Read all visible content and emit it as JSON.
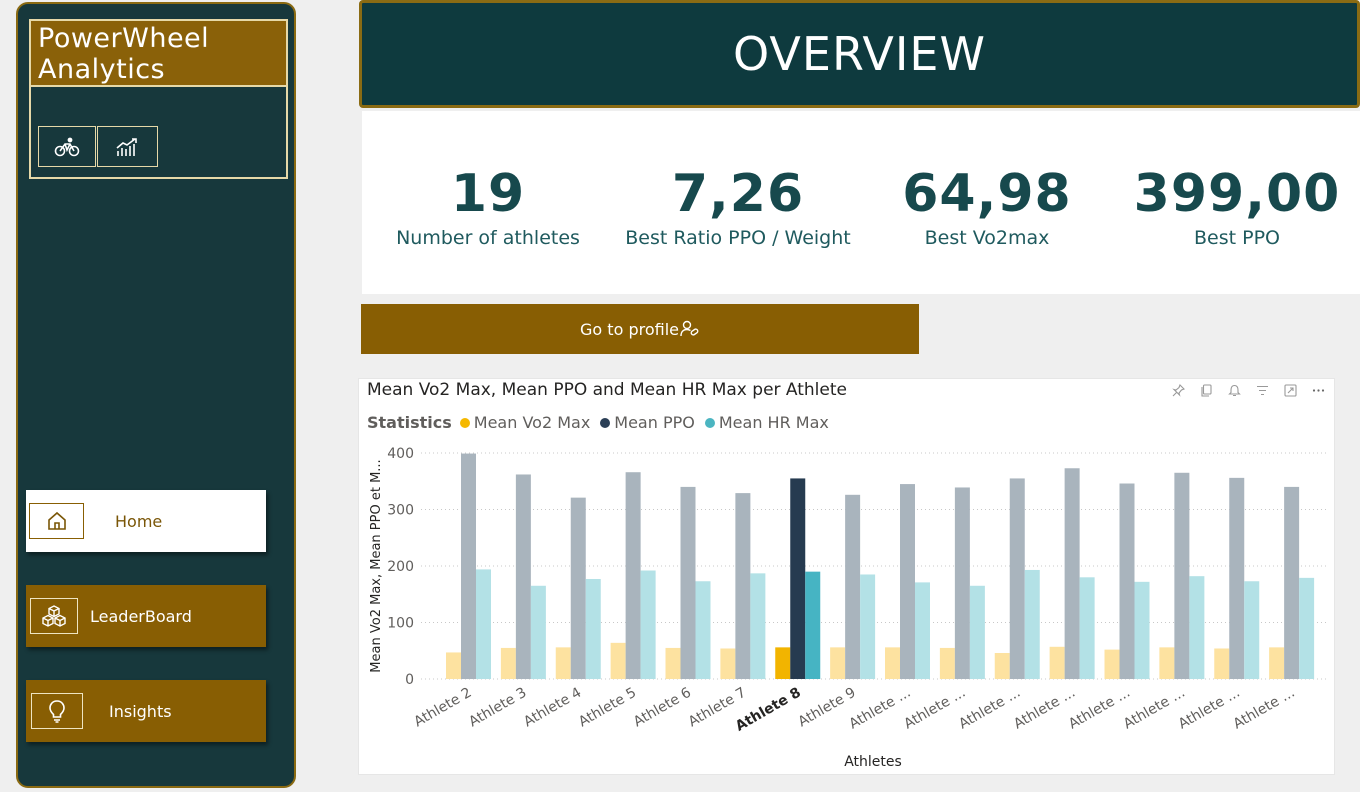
{
  "sidebar": {
    "brand_title": "PowerWheel Analytics",
    "brand_buttons": [
      {
        "icon": "bike-icon"
      },
      {
        "icon": "trend-chart-icon"
      }
    ],
    "nav": [
      {
        "label": "Home",
        "icon": "home-icon",
        "active": true
      },
      {
        "label": "LeaderBoard",
        "icon": "cubes-icon",
        "active": false
      },
      {
        "label": "Insights",
        "icon": "lightbulb-icon",
        "active": false
      }
    ]
  },
  "header": {
    "title": "OVERVIEW"
  },
  "kpis": [
    {
      "value": "19",
      "label": "Number of athletes"
    },
    {
      "value": "7,26",
      "label": "Best Ratio PPO / Weight"
    },
    {
      "value": "64,98",
      "label": "Best  Vo2max"
    },
    {
      "value": "399,00",
      "label": "Best PPO"
    }
  ],
  "profile_button": {
    "label": "Go to profile"
  },
  "chart": {
    "title": "Mean Vo2 Max, Mean PPO and Mean HR Max per Athlete",
    "legend_title": "Statistics",
    "tools": [
      "pin-icon",
      "copy-icon",
      "bell-icon",
      "filter-icon",
      "focus-mode-icon",
      "more-options-icon"
    ]
  },
  "chart_data": {
    "type": "bar",
    "categories": [
      "Athlete 2",
      "Athlete 3",
      "Athlete 4",
      "Athlete 5",
      "Athlete 6",
      "Athlete 7",
      "Athlete 8",
      "Athlete 9",
      "Athlete ...",
      "Athlete ...",
      "Athlete ...",
      "Athlete ...",
      "Athlete ...",
      "Athlete ...",
      "Athlete ...",
      "Athlete ..."
    ],
    "highlighted_category": "Athlete 8",
    "series": [
      {
        "name": "Mean Vo2 Max",
        "color": "#f5b800",
        "dim_color": "#fde2a0",
        "highlight_color": "#f2b400",
        "values": [
          47,
          55,
          56,
          64,
          55,
          54,
          56,
          56,
          56,
          55,
          46,
          57,
          52,
          56,
          54,
          56
        ]
      },
      {
        "name": "Mean PPO",
        "color": "#2b3f56",
        "dim_color": "#a9b4bd",
        "highlight_color": "#263b50",
        "values": [
          399,
          362,
          321,
          366,
          340,
          329,
          355,
          326,
          345,
          339,
          355,
          373,
          346,
          365,
          356,
          340
        ]
      },
      {
        "name": "Mean HR Max",
        "color": "#4bb5c1",
        "dim_color": "#b3e1e6",
        "highlight_color": "#46b4c3",
        "values": [
          194,
          165,
          177,
          192,
          173,
          187,
          190,
          185,
          171,
          165,
          193,
          180,
          172,
          182,
          173,
          179
        ]
      }
    ],
    "xlabel": "Athletes",
    "ylabel": "Mean Vo2 Max, Mean PPO et M...",
    "ylim": [
      0,
      400
    ],
    "yticks": [
      0,
      100,
      200,
      300,
      400
    ],
    "grid": true,
    "legend_position": "top-left"
  }
}
